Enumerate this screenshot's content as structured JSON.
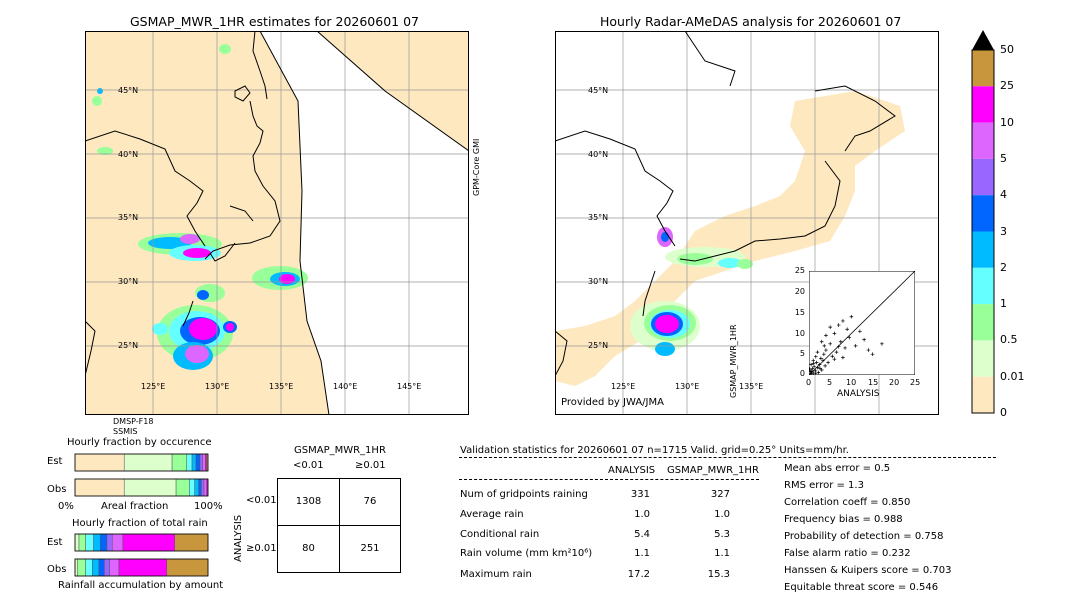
{
  "left_map": {
    "title": "GSMAP_MWR_1HR estimates for 20260601 07",
    "side_label": "GPM-Core GMI",
    "sensors": [
      "DMSP-F18",
      "SSMIS"
    ],
    "lat_labels": [
      "45°N",
      "40°N",
      "35°N",
      "30°N",
      "25°N"
    ],
    "lon_labels": [
      "125°E",
      "130°E",
      "135°E",
      "140°E",
      "145°E"
    ]
  },
  "right_map": {
    "title": "Hourly Radar-AMeDAS analysis for 20260601 07",
    "provided_by": "Provided by JWA/JMA",
    "lat_labels": [
      "45°N",
      "40°N",
      "35°N",
      "30°N",
      "25°N"
    ],
    "lon_labels": [
      "125°E",
      "130°E",
      "135°E"
    ]
  },
  "colorbar": {
    "ticks": [
      "50",
      "25",
      "10",
      "5",
      "4",
      "3",
      "2",
      "1",
      "0.5",
      "0.01",
      "0"
    ],
    "colors": [
      "#c8963c",
      "#ff00ff",
      "#dd66ff",
      "#9966ff",
      "#0066ff",
      "#00bbff",
      "#66ffff",
      "#99ff99",
      "#ddffcc",
      "#fde8c0"
    ],
    "extend_color": "#000000"
  },
  "scatter": {
    "ylabel": "GSMAP_MWR_1HR",
    "xlabel": "ANALYSIS",
    "ticks": [
      "0",
      "5",
      "10",
      "15",
      "20",
      "25"
    ],
    "range": [
      0,
      25
    ]
  },
  "fraction_occurrence": {
    "title": "Hourly fraction by occurence",
    "rows": [
      "Est",
      "Obs"
    ],
    "axis_left": "0%",
    "axis_mid": "Areal fraction",
    "axis_right": "100%"
  },
  "fraction_rain": {
    "title": "Hourly fraction of total rain",
    "rows": [
      "Est",
      "Obs"
    ],
    "axis_label": "Rainfall accumulation by amount"
  },
  "contingency": {
    "title": "GSMAP_MWR_1HR",
    "col_headers": [
      "<0.01",
      "≥0.01"
    ],
    "row_axis": "ANALYSIS",
    "row_headers": [
      "<0.01",
      "≥0.01"
    ],
    "cells": [
      [
        "1308",
        "76"
      ],
      [
        "80",
        "251"
      ]
    ]
  },
  "validation": {
    "header": "Validation statistics for 20260601 07  n=1715 Valid. grid=0.25° Units=mm/hr.",
    "col_analysis": "ANALYSIS",
    "col_gsmap": "GSMAP_MWR_1HR",
    "rows": [
      {
        "label": "Num of gridpoints raining",
        "analysis": "331",
        "gsmap": "327"
      },
      {
        "label": "Average rain",
        "analysis": "1.0",
        "gsmap": "1.0"
      },
      {
        "label": "Conditional rain",
        "analysis": "5.4",
        "gsmap": "5.3"
      },
      {
        "label": "Rain volume (mm km²10⁶)",
        "analysis": "1.1",
        "gsmap": "1.1"
      },
      {
        "label": "Maximum rain",
        "analysis": "17.2",
        "gsmap": "15.3"
      }
    ],
    "scores": [
      "Mean abs error =    0.5",
      "RMS error =    1.3",
      "Correlation coeff =  0.850",
      "Frequency bias =  0.988",
      "Probability of detection =  0.758",
      "False alarm ratio =  0.232",
      "Hanssen & Kuipers score =  0.703",
      "Equitable threat score =  0.546"
    ]
  },
  "chart_data": [
    {
      "type": "scatter",
      "xlabel": "ANALYSIS",
      "ylabel": "GSMAP_MWR_1HR",
      "xlim": [
        0,
        25
      ],
      "ylim": [
        0,
        25
      ],
      "points_x": [
        0.3,
        0.5,
        0.8,
        1.0,
        1.2,
        1.5,
        1.8,
        2.0,
        2.2,
        2.5,
        2.8,
        3.0,
        3.3,
        3.5,
        3.8,
        4.0,
        4.5,
        5.0,
        5.5,
        6.0,
        6.5,
        7.0,
        7.5,
        8.0,
        8.5,
        9.0,
        9.5,
        10.0,
        11.0,
        12.0,
        13.0,
        14.0,
        15.0,
        17.2,
        0.5,
        1.0,
        1.5,
        2.0,
        3.0,
        4.0,
        5.0,
        6.0,
        7.0,
        8.0,
        0.2,
        0.6,
        1.1,
        1.6,
        2.6,
        3.6
      ],
      "points_y": [
        0.8,
        0.3,
        1.5,
        0.5,
        2.0,
        1.0,
        3.0,
        1.8,
        0.6,
        2.5,
        4.0,
        1.2,
        3.5,
        5.0,
        2.2,
        6.0,
        3.0,
        7.5,
        4.5,
        10.0,
        5.5,
        12.0,
        8.0,
        13.0,
        6.5,
        11.0,
        9.0,
        14.0,
        7.0,
        10.5,
        8.5,
        6.0,
        5.0,
        7.5,
        2.5,
        3.5,
        0.4,
        5.5,
        8.0,
        9.5,
        11.5,
        3.8,
        6.8,
        4.2,
        1.4,
        0.9,
        2.8,
        4.4,
        1.6,
        7.0
      ]
    },
    {
      "type": "bar",
      "title": "Hourly fraction by occurence",
      "categories": [
        "Est",
        "Obs"
      ],
      "series": [
        {
          "values": [
            0.37,
            0.37
          ]
        },
        {
          "values": [
            0.36,
            0.39
          ]
        },
        {
          "values": [
            0.11,
            0.1
          ]
        },
        {
          "values": [
            0.04,
            0.04
          ]
        },
        {
          "values": [
            0.03,
            0.03
          ]
        },
        {
          "values": [
            0.03,
            0.02
          ]
        },
        {
          "values": [
            0.02,
            0.02
          ]
        },
        {
          "values": [
            0.02,
            0.02
          ]
        },
        {
          "values": [
            0.01,
            0.01
          ]
        },
        {
          "values": [
            0.01,
            0.0
          ]
        }
      ]
    },
    {
      "type": "bar",
      "title": "Hourly fraction of total rain",
      "categories": [
        "Est",
        "Obs"
      ],
      "series": [
        {
          "values": [
            0.0,
            0.0
          ]
        },
        {
          "values": [
            0.03,
            0.02
          ]
        },
        {
          "values": [
            0.05,
            0.06
          ]
        },
        {
          "values": [
            0.06,
            0.05
          ]
        },
        {
          "values": [
            0.05,
            0.05
          ]
        },
        {
          "values": [
            0.05,
            0.04
          ]
        },
        {
          "values": [
            0.04,
            0.04
          ]
        },
        {
          "values": [
            0.08,
            0.07
          ]
        },
        {
          "values": [
            0.39,
            0.36
          ]
        },
        {
          "values": [
            0.25,
            0.31
          ]
        }
      ]
    }
  ]
}
